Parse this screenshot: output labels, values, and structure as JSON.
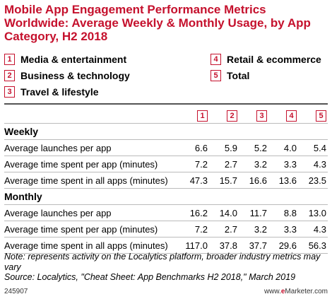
{
  "title": {
    "line1": "Mobile App Engagement Performance Metrics",
    "line2": "Worldwide: Average Weekly & Monthly Usage, by App",
    "line3": "Category, H2 2018"
  },
  "legend": [
    {
      "num": "1",
      "label": "Media & entertainment"
    },
    {
      "num": "2",
      "label": "Business & technology"
    },
    {
      "num": "3",
      "label": "Travel & lifestyle"
    },
    {
      "num": "4",
      "label": "Retail & ecommerce"
    },
    {
      "num": "5",
      "label": "Total"
    }
  ],
  "table": {
    "columns": [
      "1",
      "2",
      "3",
      "4",
      "5"
    ],
    "sections": [
      {
        "name": "Weekly",
        "rows": [
          {
            "label": "Average launches per app",
            "values": [
              "6.6",
              "5.9",
              "5.2",
              "4.0",
              "5.4"
            ]
          },
          {
            "label": "Average time spent per app (minutes)",
            "values": [
              "7.2",
              "2.7",
              "3.2",
              "3.3",
              "4.3"
            ]
          },
          {
            "label": "Average time spent in all apps (minutes)",
            "values": [
              "47.3",
              "15.7",
              "16.6",
              "13.6",
              "23.5"
            ]
          }
        ]
      },
      {
        "name": "Monthly",
        "rows": [
          {
            "label": "Average launches per app",
            "values": [
              "16.2",
              "14.0",
              "11.7",
              "8.8",
              "13.0"
            ]
          },
          {
            "label": "Average time spent per app (minutes)",
            "values": [
              "7.2",
              "2.7",
              "3.2",
              "3.3",
              "4.3"
            ]
          },
          {
            "label": "Average time spent in all apps (minutes)",
            "values": [
              "117.0",
              "37.8",
              "37.7",
              "29.6",
              "56.3"
            ]
          }
        ]
      }
    ]
  },
  "note": "Note: represents activity on the Localytics platform, broader industry metrics may vary",
  "source": "Source: Localytics, \"Cheat Sheet: App Benchmarks H2 2018,\" March 2019",
  "footer": {
    "id": "245907",
    "site_prefix": "www.",
    "site_e": "e",
    "site_suffix": "Marketer.com"
  },
  "colors": {
    "accent": "#c5112d"
  }
}
